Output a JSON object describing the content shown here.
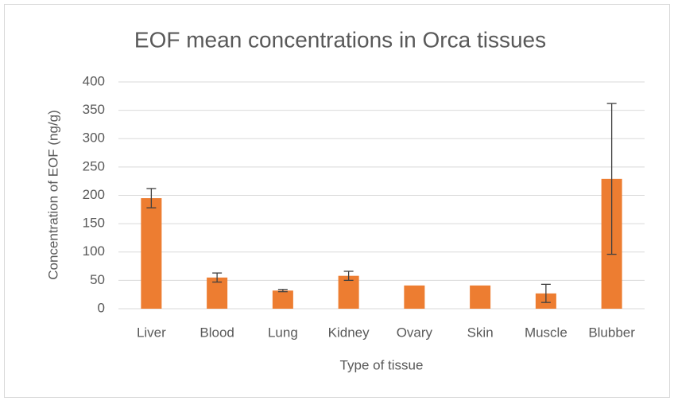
{
  "chart_data": {
    "type": "bar",
    "title": "EOF mean concentrations in Orca tissues",
    "x_label": "Type of tissue",
    "y_label": "Concentration of EOF (ng/g)",
    "categories": [
      "Liver",
      "Blood",
      "Lung",
      "Kidney",
      "Ovary",
      "Skin",
      "Muscle",
      "Blubber"
    ],
    "values": [
      195,
      55,
      32,
      58,
      41,
      41,
      27,
      229
    ],
    "errors": [
      17,
      8,
      2,
      8,
      null,
      null,
      16,
      133
    ],
    "color": "#ed7d31",
    "ylim": [
      0,
      400
    ],
    "yticks": [
      0,
      50,
      100,
      150,
      200,
      250,
      300,
      350,
      400
    ],
    "grid": true
  }
}
